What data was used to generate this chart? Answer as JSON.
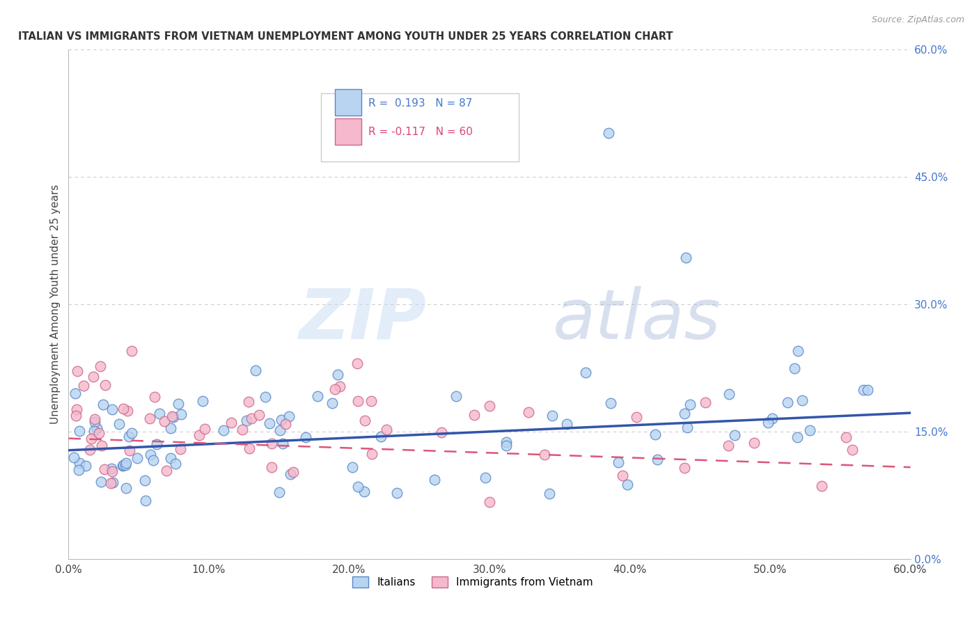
{
  "title": "ITALIAN VS IMMIGRANTS FROM VIETNAM UNEMPLOYMENT AMONG YOUTH UNDER 25 YEARS CORRELATION CHART",
  "source": "Source: ZipAtlas.com",
  "ylabel": "Unemployment Among Youth under 25 years",
  "xlim": [
    0,
    0.6
  ],
  "ylim": [
    0,
    0.6
  ],
  "xtick_vals": [
    0,
    0.1,
    0.2,
    0.3,
    0.4,
    0.5,
    0.6
  ],
  "xtick_labels": [
    "0.0%",
    "10.0%",
    "20.0%",
    "30.0%",
    "40.0%",
    "50.0%",
    "60.0%"
  ],
  "ytick_vals": [
    0,
    0.15,
    0.3,
    0.45,
    0.6
  ],
  "ytick_labels": [
    "0.0%",
    "15.0%",
    "30.0%",
    "45.0%",
    "60.0%"
  ],
  "italian_color": "#b8d4f0",
  "italian_edge_color": "#5588cc",
  "vietnam_color": "#f5b8cc",
  "vietnam_edge_color": "#cc6688",
  "italian_line_color": "#3355aa",
  "vietnam_line_color": "#dd5577",
  "R_italian": 0.193,
  "N_italian": 87,
  "R_vietnam": -0.117,
  "N_vietnam": 60,
  "legend_label_italian": "Italians",
  "legend_label_vietnam": "Immigrants from Vietnam",
  "watermark_zip": "ZIP",
  "watermark_atlas": "atlas",
  "background_color": "#ffffff",
  "grid_color": "#cccccc",
  "italian_line_start_y": 0.128,
  "italian_line_end_y": 0.172,
  "vietnam_line_start_y": 0.142,
  "vietnam_line_end_y": 0.108
}
